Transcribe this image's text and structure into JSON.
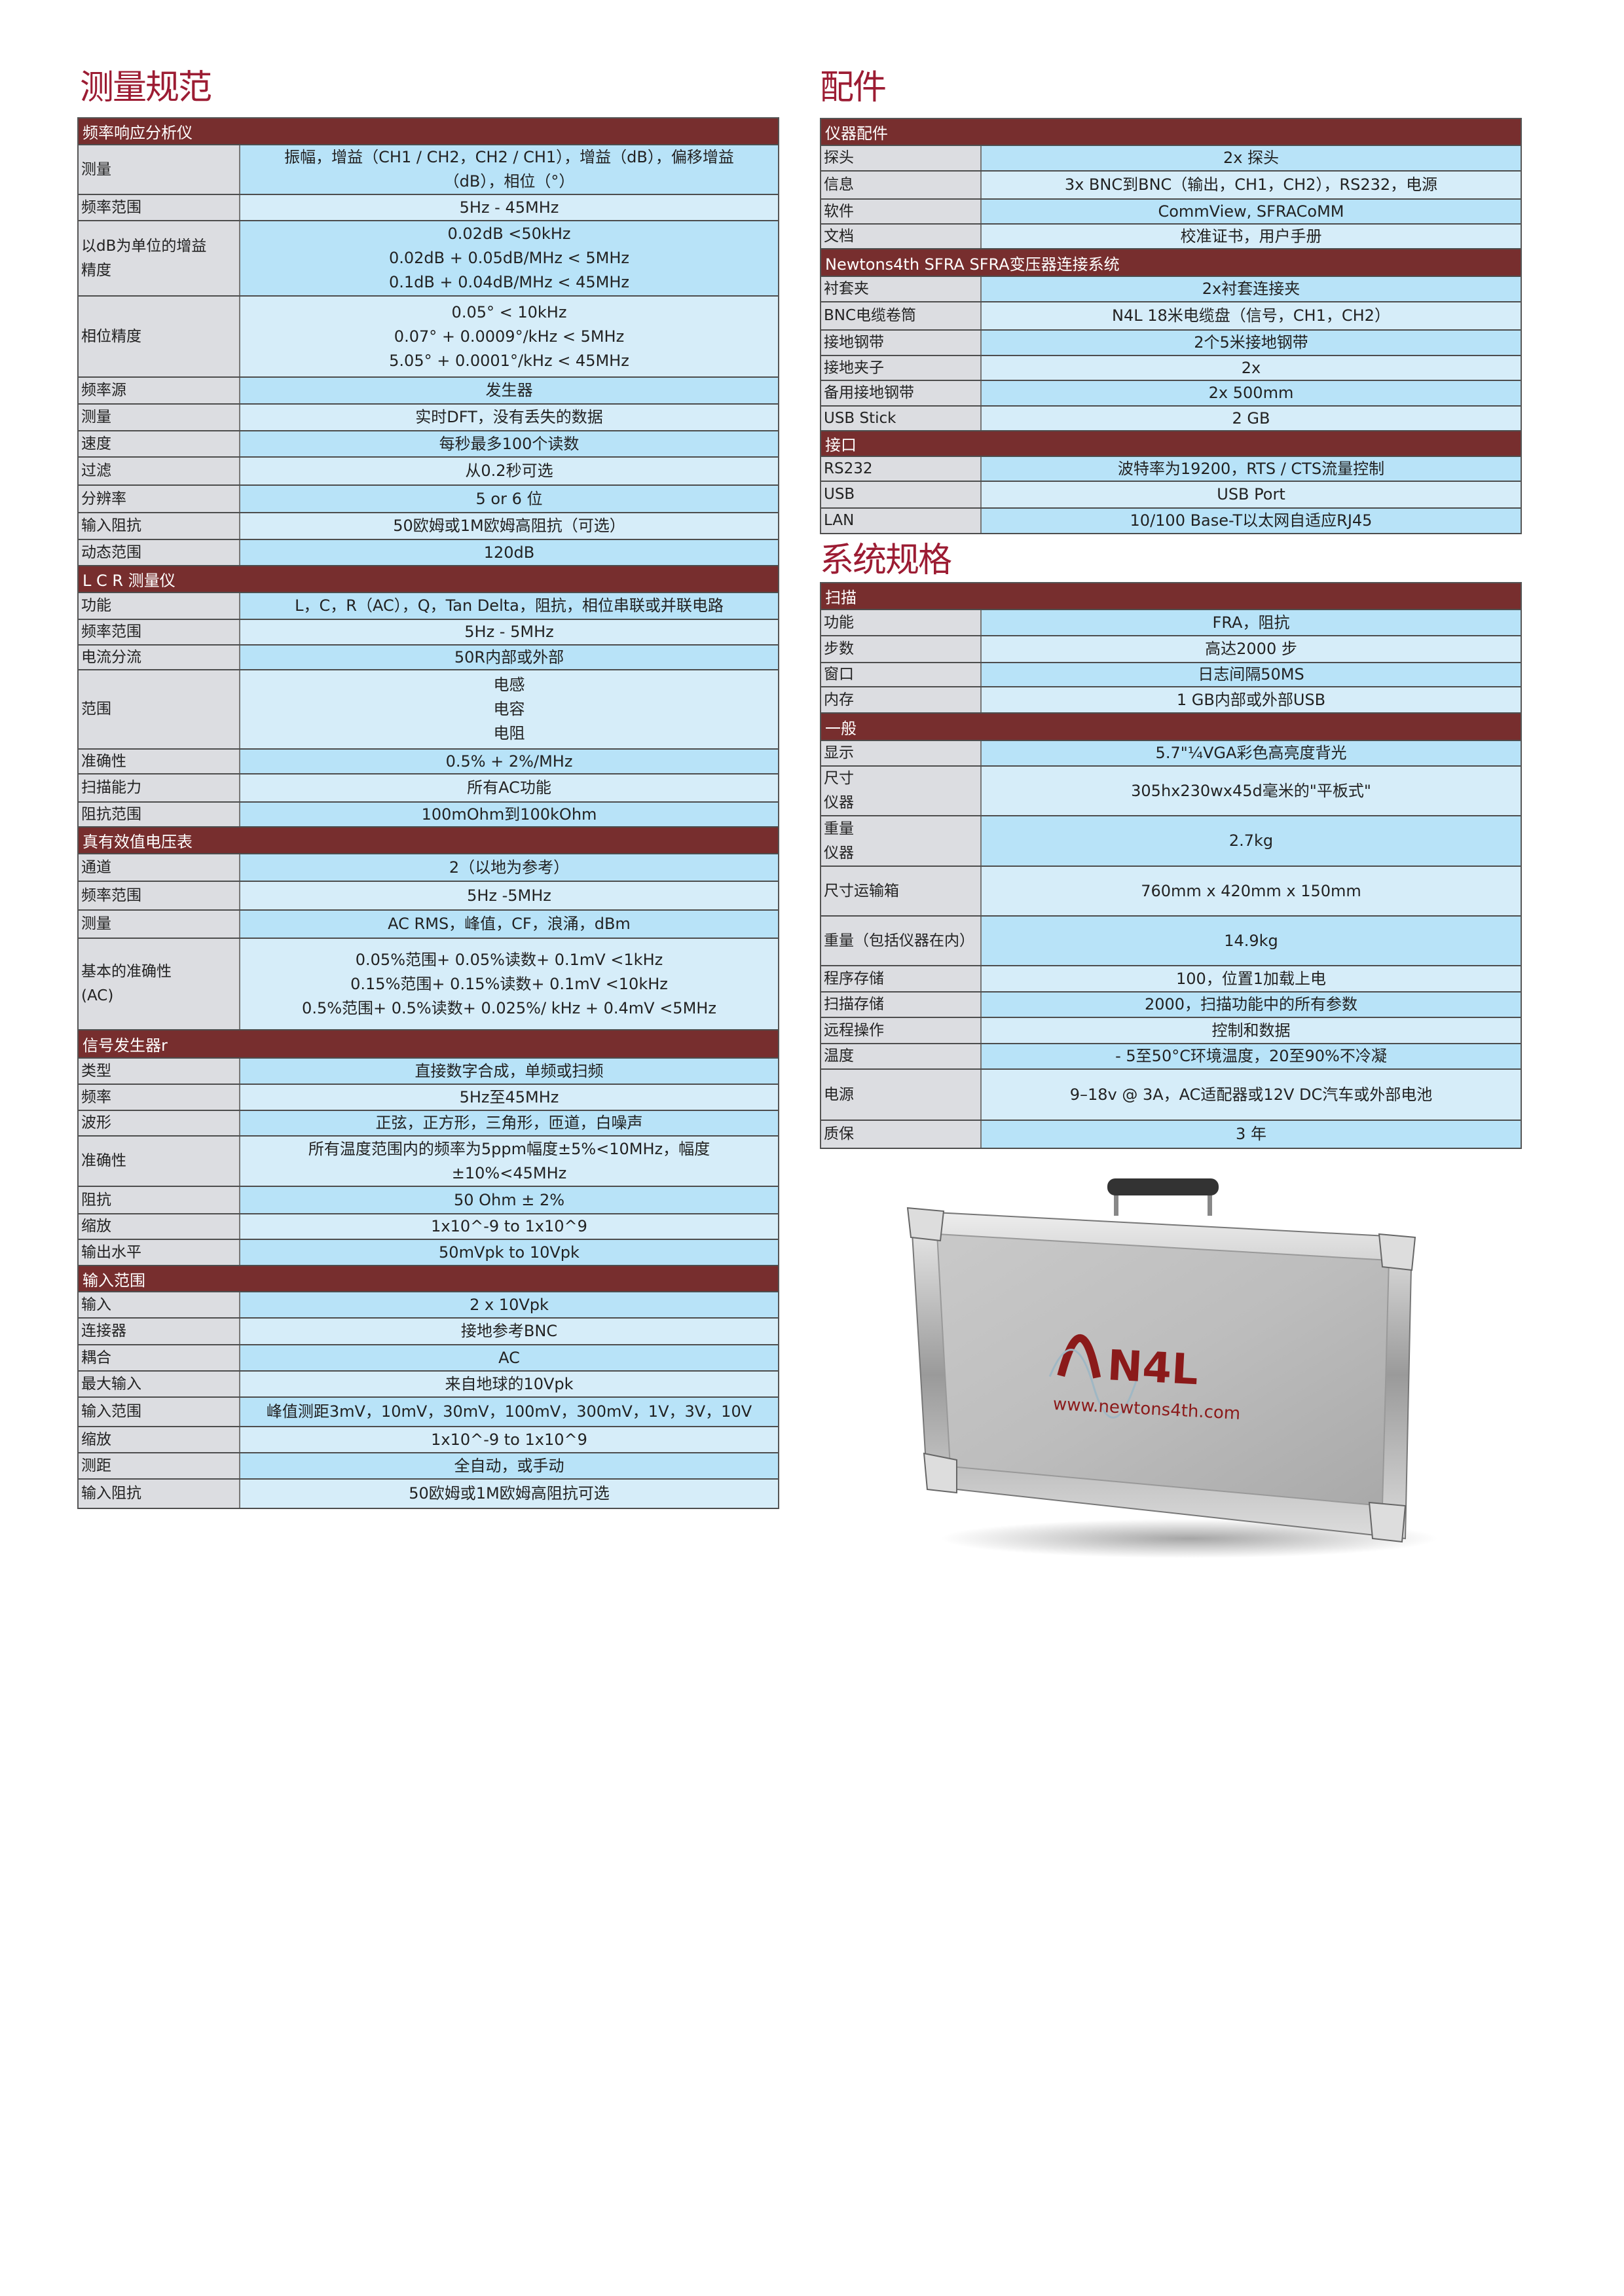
{
  "left": {
    "title": "测量规范",
    "sections": [
      {
        "header": "频率响应分析仪",
        "rows": [
          {
            "label": [
              "测量"
            ],
            "value": [
              "振幅，增益（CH1 / CH2，CH2 / CH1），增益（dB），偏移增益",
              "（dB），相位（°）"
            ]
          },
          {
            "label": [
              "频率范围"
            ],
            "value": [
              "5Hz - 45MHz"
            ]
          },
          {
            "label": [
              "以dB为单位的增益",
              "精度"
            ],
            "value": [
              "0.02dB <50kHz",
              "0.02dB + 0.05dB/MHz < 5MHz",
              "0.1dB + 0.04dB/MHz < 45MHz"
            ]
          },
          {
            "label": [
              "相位精度"
            ],
            "value": [
              "0.05° < 10kHz",
              "0.07° + 0.0009°/kHz < 5MHz",
              "5.05° + 0.0001°/kHz < 45MHz"
            ]
          },
          {
            "label": [
              "频率源"
            ],
            "value": [
              "发生器"
            ]
          },
          {
            "label": [
              "测量"
            ],
            "value": [
              "实时DFT，没有丢失的数据"
            ]
          },
          {
            "label": [
              "速度"
            ],
            "value": [
              "每秒最多100个读数"
            ]
          },
          {
            "label": [
              "过滤"
            ],
            "value": [
              "从0.2秒可选"
            ]
          },
          {
            "label": [
              "分辨率"
            ],
            "value": [
              "5 or 6 位"
            ]
          },
          {
            "label": [
              "输入阻抗"
            ],
            "value": [
              "50欧姆或1M欧姆高阻抗（可选）"
            ]
          },
          {
            "label": [
              "动态范围"
            ],
            "value": [
              "120dB"
            ]
          }
        ]
      },
      {
        "header": "L C R 测量仪",
        "rows": [
          {
            "label": [
              "功能"
            ],
            "value": [
              "L，C，R（AC），Q，Tan Delta，阻抗，相位串联或并联电路"
            ]
          },
          {
            "label": [
              "频率范围"
            ],
            "value": [
              "5Hz - 5MHz"
            ]
          },
          {
            "label": [
              "电流分流"
            ],
            "value": [
              "50R内部或外部"
            ]
          },
          {
            "label": [
              "范围"
            ],
            "value": [
              "电感",
              "电容",
              "电阻"
            ]
          },
          {
            "label": [
              "准确性"
            ],
            "value": [
              "0.5% + 2%/MHz"
            ]
          },
          {
            "label": [
              "扫描能力"
            ],
            "value": [
              "所有AC功能"
            ]
          },
          {
            "label": [
              "阻抗范围"
            ],
            "value": [
              "100mOhm到100kOhm"
            ]
          }
        ]
      },
      {
        "header": "真有效值电压表",
        "rows": [
          {
            "label": [
              "通道"
            ],
            "value": [
              "2（以地为参考）"
            ]
          },
          {
            "label": [
              "频率范围"
            ],
            "value": [
              "5Hz -5MHz"
            ]
          },
          {
            "label": [
              "测量"
            ],
            "value": [
              "AC RMS，峰值，CF，浪涌，dBm"
            ]
          },
          {
            "label": [
              "基本的准确性",
              "(AC)"
            ],
            "value": [
              "0.05%范围+ 0.05%读数+ 0.1mV <1kHz",
              "0.15%范围+ 0.15%读数+ 0.1mV <10kHz",
              "0.5%范围+ 0.5%读数+ 0.025%/ kHz + 0.4mV <5MHz"
            ]
          }
        ]
      },
      {
        "header": "信号发生器r",
        "rows": [
          {
            "label": [
              "类型"
            ],
            "value": [
              "直接数字合成，单频或扫频"
            ]
          },
          {
            "label": [
              "频率"
            ],
            "value": [
              "5Hz至45MHz"
            ]
          },
          {
            "label": [
              "波形"
            ],
            "value": [
              "正弦，正方形，三角形，匝道，白噪声"
            ]
          },
          {
            "label": [
              "准确性"
            ],
            "value": [
              "所有温度范围内的频率为5ppm幅度±5%<10MHz，幅度",
              "±10%<45MHz"
            ]
          },
          {
            "label": [
              "阻抗"
            ],
            "value": [
              "50 Ohm ± 2%"
            ]
          },
          {
            "label": [
              "缩放"
            ],
            "value": [
              "1x10^-9 to 1x10^9"
            ]
          },
          {
            "label": [
              "输出水平"
            ],
            "value": [
              "50mVpk to 10Vpk"
            ]
          }
        ]
      },
      {
        "header": "输入范围",
        "rows": [
          {
            "label": [
              "输入"
            ],
            "value": [
              "2 x 10Vpk"
            ]
          },
          {
            "label": [
              "连接器"
            ],
            "value": [
              "接地参考BNC"
            ]
          },
          {
            "label": [
              "耦合"
            ],
            "value": [
              "AC"
            ]
          },
          {
            "label": [
              "最大输入"
            ],
            "value": [
              "来自地球的10Vpk"
            ]
          },
          {
            "label": [
              "输入范围"
            ],
            "value": [
              "峰值测距3mV，10mV，30mV，100mV，300mV，1V，3V，10V"
            ]
          },
          {
            "label": [
              "缩放"
            ],
            "value": [
              "1x10^-9 to 1x10^9"
            ]
          },
          {
            "label": [
              "测距"
            ],
            "value": [
              "全自动，或手动"
            ]
          },
          {
            "label": [
              "输入阻抗"
            ],
            "value": [
              "50欧姆或1M欧姆高阻抗可选"
            ]
          }
        ]
      }
    ]
  },
  "accessories": {
    "title": "配件",
    "sections": [
      {
        "header": "仪器配件",
        "rows": [
          {
            "label": [
              "探头"
            ],
            "value": [
              "2x 探头"
            ]
          },
          {
            "label": [
              "信息"
            ],
            "value": [
              "3x BNC到BNC（输出，CH1，CH2），RS232，电源"
            ]
          },
          {
            "label": [
              "软件"
            ],
            "value": [
              "CommView, SFRACoMM"
            ]
          },
          {
            "label": [
              "文档"
            ],
            "value": [
              "校准证书，用户手册"
            ]
          }
        ]
      },
      {
        "header": "Newtons4th SFRA SFRA变压器连接系统",
        "rows": [
          {
            "label": [
              "衬套夹"
            ],
            "value": [
              "2x衬套连接夹"
            ]
          },
          {
            "label": [
              "BNC电缆卷筒"
            ],
            "value": [
              "N4L 18米电缆盘（信号，CH1，CH2）"
            ]
          },
          {
            "label": [
              "接地钢带"
            ],
            "value": [
              "2个5米接地钢带"
            ]
          },
          {
            "label": [
              "接地夹子"
            ],
            "value": [
              "2x"
            ]
          },
          {
            "label": [
              "备用接地钢带"
            ],
            "value": [
              "2x 500mm"
            ]
          },
          {
            "label": [
              "USB Stick"
            ],
            "value": [
              "2 GB"
            ]
          }
        ]
      },
      {
        "header": "接口",
        "rows": [
          {
            "label": [
              "RS232"
            ],
            "value": [
              "波特率为19200，RTS / CTS流量控制"
            ]
          },
          {
            "label": [
              "USB"
            ],
            "value": [
              "USB Port"
            ]
          },
          {
            "label": [
              "LAN"
            ],
            "value": [
              "10/100 Base-T以太网自适应RJ45"
            ]
          }
        ]
      }
    ]
  },
  "system": {
    "title": "系统规格",
    "sections": [
      {
        "header": "扫描",
        "rows": [
          {
            "label": [
              "功能"
            ],
            "value": [
              "FRA，阻抗"
            ]
          },
          {
            "label": [
              "步数"
            ],
            "value": [
              "高达2000 步"
            ]
          },
          {
            "label": [
              "窗口"
            ],
            "value": [
              "日志间隔50MS"
            ]
          },
          {
            "label": [
              "内存"
            ],
            "value": [
              "1 GB内部或外部USB"
            ]
          }
        ]
      },
      {
        "header": "一般",
        "rows": [
          {
            "label": [
              "显示"
            ],
            "value": [
              "5.7\"¼VGA彩色高亮度背光"
            ]
          },
          {
            "label": [
              "尺寸",
              "仪器"
            ],
            "value": [
              "305hx230wx45d毫米的\"平板式\""
            ]
          },
          {
            "label": [
              "重量",
              "仪器"
            ],
            "value": [
              "2.7kg"
            ]
          },
          {
            "label": [
              "尺寸运输箱"
            ],
            "value": [
              "760mm x 420mm x 150mm"
            ]
          },
          {
            "label": [
              "重量（包括仪器在内）"
            ],
            "value": [
              "14.9kg"
            ]
          },
          {
            "label": [
              "程序存储"
            ],
            "value": [
              "100，位置1加载上电"
            ]
          },
          {
            "label": [
              "扫描存储"
            ],
            "value": [
              "2000，扫描功能中的所有参数"
            ]
          },
          {
            "label": [
              "远程操作"
            ],
            "value": [
              "控制和数据"
            ]
          },
          {
            "label": [
              "温度"
            ],
            "value": [
              "- 5至50°C环境温度，20至90%不冷凝"
            ]
          },
          {
            "label": [
              "电源"
            ],
            "value": [
              "9–18v @ 3A，AC适配器或12V DC汽车或外部电池"
            ]
          },
          {
            "label": [
              "质保"
            ],
            "value": [
              "3 年"
            ]
          }
        ]
      }
    ]
  },
  "case_image": {
    "logo": "N4L",
    "url_text": "www.newtons4th.com"
  },
  "colors": {
    "title": "#9c1c33",
    "header": "#772e2e",
    "label_bg": "#dcdde1",
    "value_dark": "#b8e3f8",
    "value_light": "#d6edf9"
  }
}
